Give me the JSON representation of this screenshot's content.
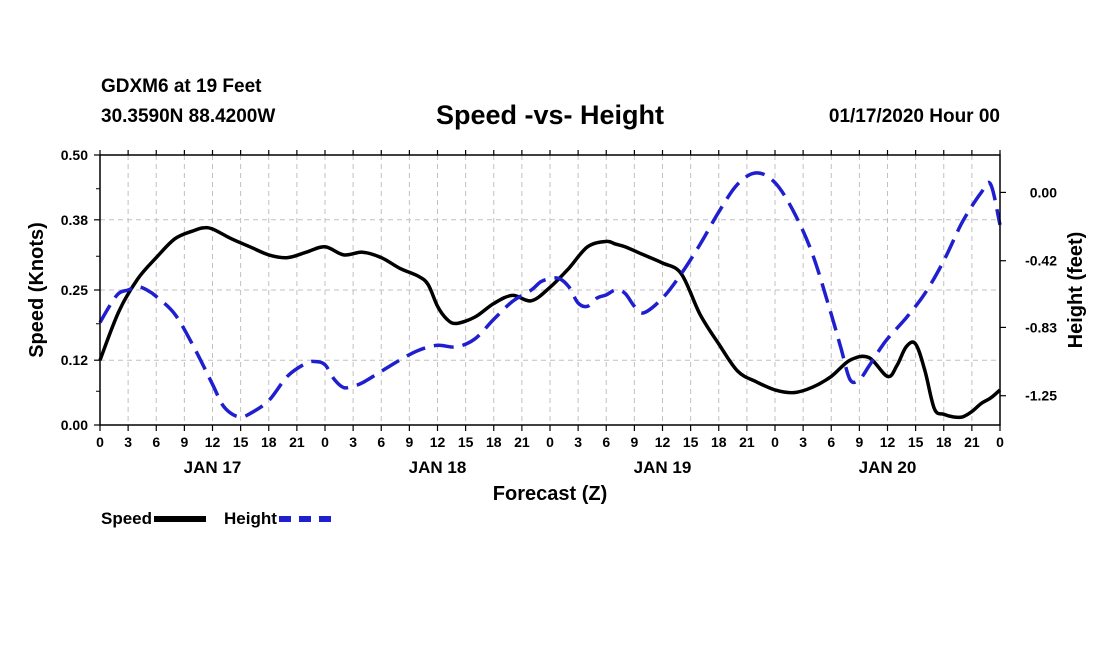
{
  "header": {
    "station": "GDXM6 at 19 Feet",
    "coords": "30.3590N 88.4200W",
    "title": "Speed -vs- Height",
    "datetime": "01/17/2020 Hour 00"
  },
  "legend": {
    "speed_label": "Speed",
    "height_label": "Height"
  },
  "chart_data": {
    "type": "line",
    "title": "Speed -vs- Height",
    "xlabel": "Forecast (Z)",
    "ylabel_left": "Speed (Knots)",
    "ylabel_right": "Height (feet)",
    "grid": true,
    "legend_position": "bottom-left",
    "x_range_hours": [
      0,
      96
    ],
    "x_tick_labels": [
      "0",
      "3",
      "6",
      "9",
      "12",
      "15",
      "18",
      "21",
      "0",
      "3",
      "6",
      "9",
      "12",
      "15",
      "18",
      "21",
      "0",
      "3",
      "6",
      "9",
      "12",
      "15",
      "18",
      "21",
      "0",
      "3",
      "6",
      "9",
      "12",
      "15",
      "18",
      "21",
      "0"
    ],
    "day_labels": [
      "JAN 17",
      "JAN 18",
      "JAN 19",
      "JAN 20"
    ],
    "y_left": {
      "range": [
        0.0,
        0.5
      ],
      "ticks": [
        "0.00",
        "0.12",
        "0.25",
        "0.38",
        "0.50"
      ]
    },
    "y_right": {
      "range": [
        -1.43,
        0.23
      ],
      "ticks": [
        "0.00",
        "-0.42",
        "-0.83",
        "-1.25"
      ]
    },
    "colors": {
      "speed": "#000000",
      "height": "#1f1fd0",
      "grid": "#c0c0c0"
    },
    "series": [
      {
        "name": "Speed",
        "axis": "left",
        "style": "solid",
        "x": [
          0,
          2,
          4,
          6,
          8,
          10,
          11,
          12,
          14,
          16,
          18,
          20,
          22,
          24,
          26,
          28,
          30,
          32,
          34,
          35,
          36,
          37,
          38,
          40,
          42,
          44,
          46,
          48,
          50,
          52,
          54,
          55,
          56,
          58,
          60,
          62,
          64,
          66,
          68,
          70,
          72,
          74,
          76,
          78,
          80,
          82,
          84,
          85,
          86,
          87,
          88,
          89,
          90,
          91,
          92,
          93,
          94,
          95,
          96
        ],
        "values": [
          0.12,
          0.21,
          0.27,
          0.31,
          0.345,
          0.36,
          0.365,
          0.363,
          0.345,
          0.33,
          0.315,
          0.31,
          0.32,
          0.33,
          0.315,
          0.32,
          0.31,
          0.29,
          0.275,
          0.26,
          0.22,
          0.196,
          0.188,
          0.2,
          0.225,
          0.24,
          0.23,
          0.255,
          0.29,
          0.33,
          0.34,
          0.335,
          0.33,
          0.315,
          0.3,
          0.28,
          0.205,
          0.15,
          0.1,
          0.08,
          0.065,
          0.06,
          0.07,
          0.09,
          0.12,
          0.125,
          0.09,
          0.11,
          0.145,
          0.15,
          0.1,
          0.03,
          0.02,
          0.015,
          0.015,
          0.025,
          0.04,
          0.05,
          0.065
        ]
      },
      {
        "name": "Height",
        "axis": "right",
        "style": "dashed",
        "x": [
          0,
          1,
          2,
          3,
          4,
          5,
          6,
          8,
          10,
          12,
          13,
          14,
          15,
          16,
          18,
          20,
          22,
          23,
          24,
          25,
          26,
          27,
          28,
          30,
          32,
          34,
          36,
          38,
          40,
          42,
          44,
          46,
          47,
          48,
          49,
          50,
          51,
          52,
          53,
          54,
          55,
          56,
          57,
          58,
          60,
          62,
          64,
          66,
          68,
          70,
          72,
          74,
          76,
          78,
          79,
          80,
          81,
          82,
          83,
          84,
          86,
          88,
          90,
          92,
          94,
          95,
          96
        ],
        "values": [
          -0.8,
          -0.7,
          -0.62,
          -0.6,
          -0.58,
          -0.6,
          -0.64,
          -0.75,
          -0.95,
          -1.18,
          -1.3,
          -1.36,
          -1.38,
          -1.36,
          -1.28,
          -1.13,
          -1.05,
          -1.04,
          -1.06,
          -1.15,
          -1.2,
          -1.19,
          -1.17,
          -1.1,
          -1.03,
          -0.97,
          -0.94,
          -0.95,
          -0.9,
          -0.78,
          -0.67,
          -0.6,
          -0.55,
          -0.53,
          -0.53,
          -0.58,
          -0.68,
          -0.7,
          -0.65,
          -0.63,
          -0.6,
          -0.62,
          -0.7,
          -0.74,
          -0.65,
          -0.5,
          -0.32,
          -0.12,
          0.05,
          0.12,
          0.06,
          -0.12,
          -0.38,
          -0.75,
          -0.95,
          -1.15,
          -1.15,
          -1.07,
          -0.98,
          -0.9,
          -0.77,
          -0.62,
          -0.42,
          -0.18,
          0.0,
          0.05,
          -0.2
        ]
      }
    ]
  }
}
